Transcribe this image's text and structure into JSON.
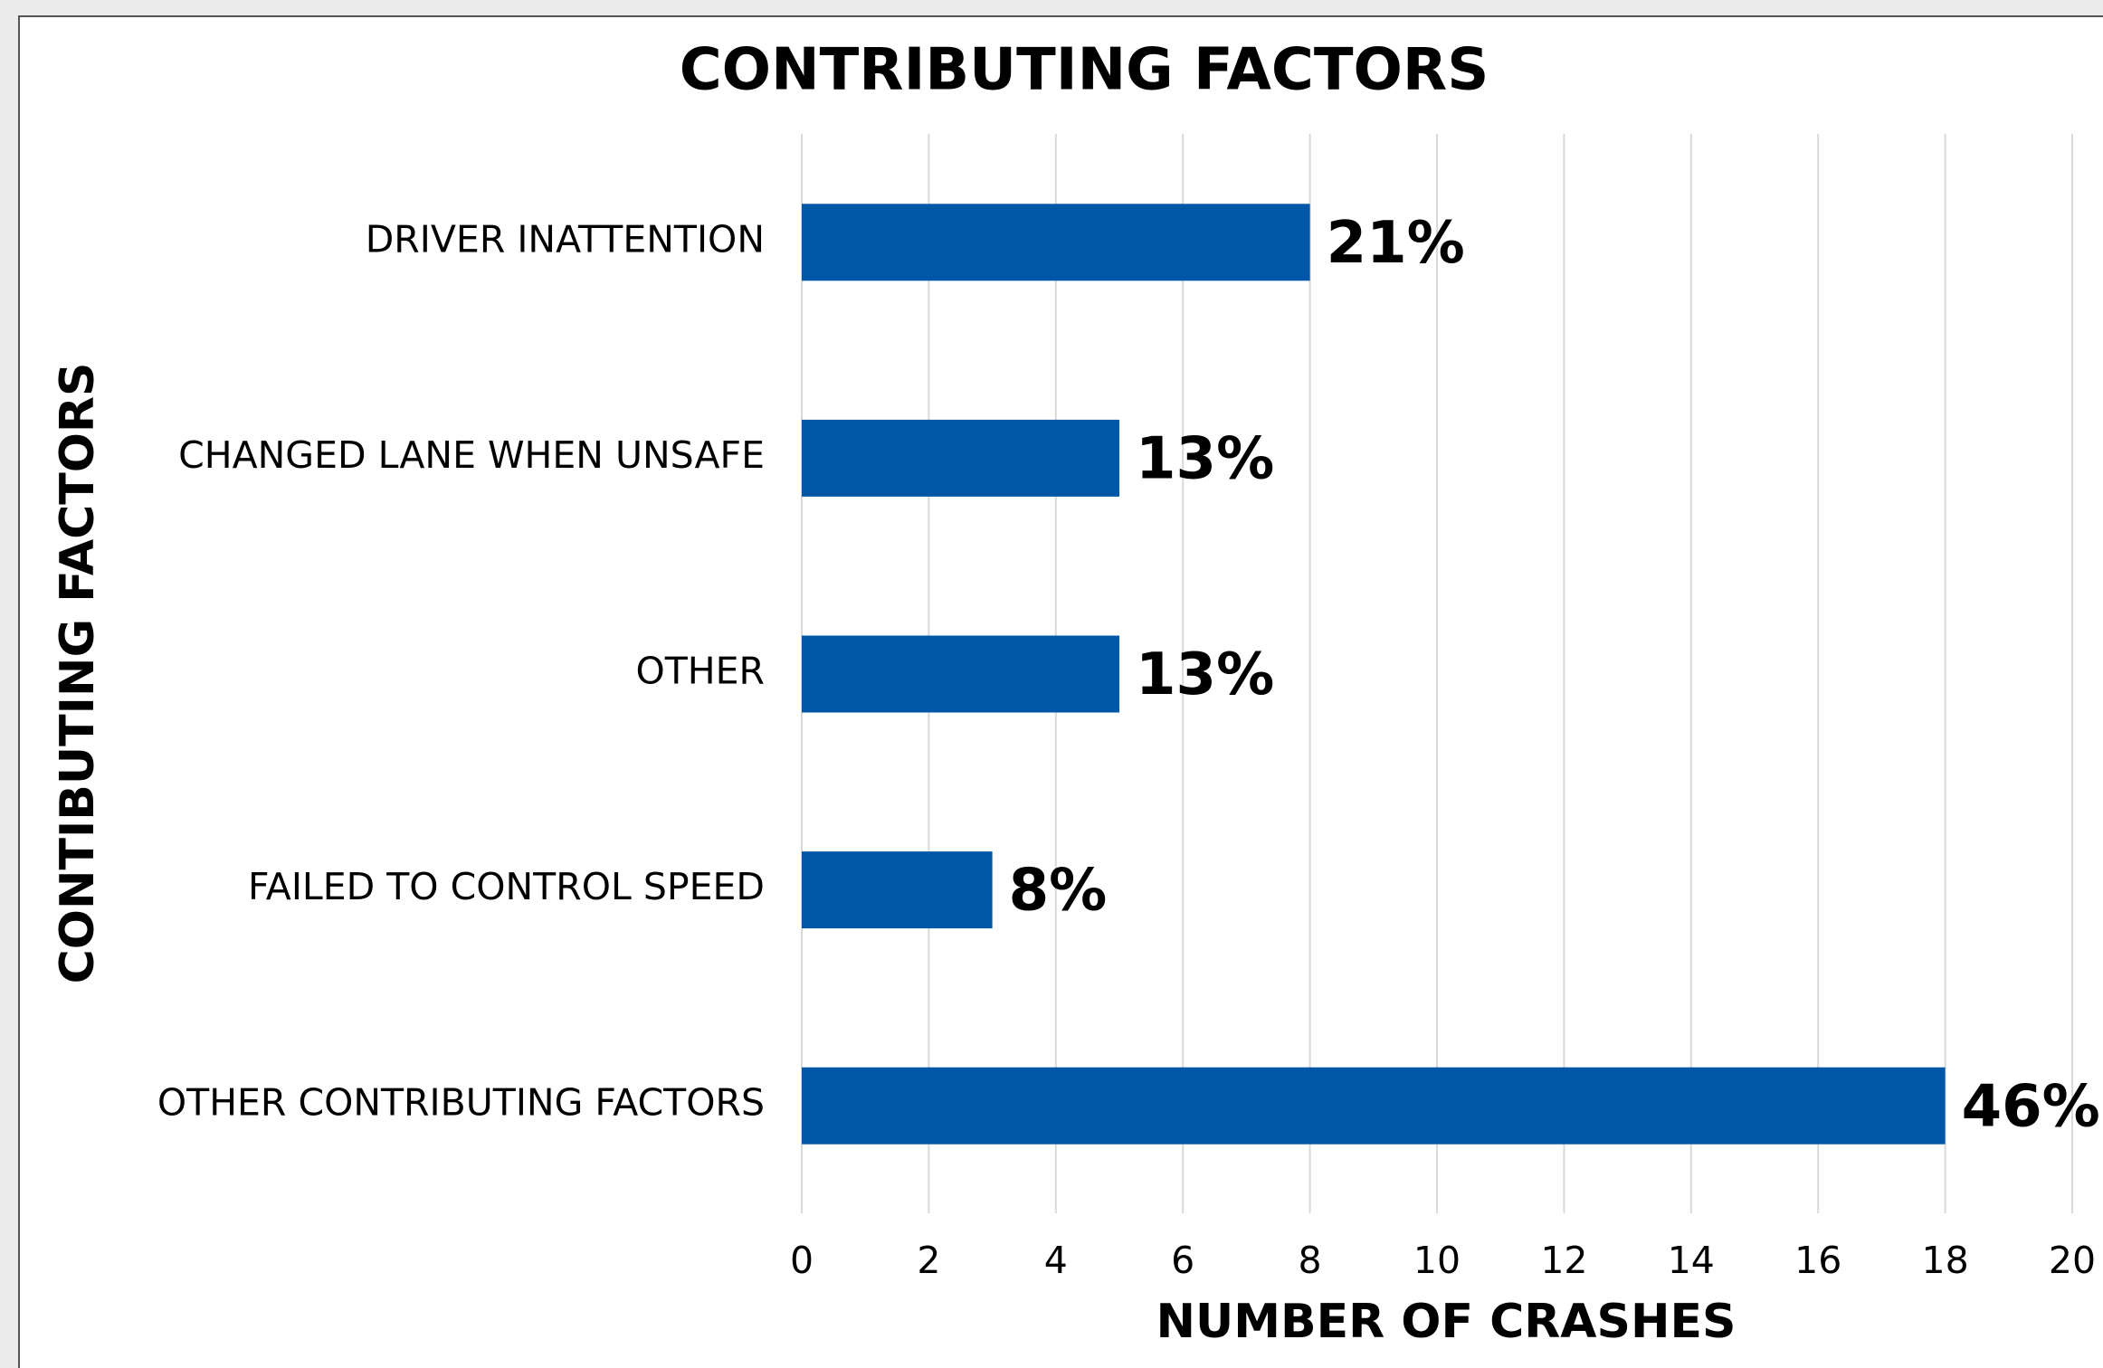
{
  "chart_data": {
    "type": "hbar",
    "title": "CONTRIBUTING FACTORS",
    "x_label": "NUMBER OF CRASHES",
    "y_label": "CONTIBUTING FACTORS",
    "categories": [
      "DRIVER INATTENTION",
      "CHANGED LANE WHEN UNSAFE",
      "OTHER",
      "FAILED TO CONTROL SPEED",
      "OTHER CONTRIBUTING FACTORS"
    ],
    "values": [
      8,
      5,
      5,
      3,
      18
    ],
    "value_labels": [
      "21%",
      "13%",
      "13%",
      "8%",
      "46%"
    ],
    "color": "#0057a8",
    "xlim": [
      0,
      20
    ],
    "xticks": [
      0,
      2,
      4,
      6,
      8,
      10,
      12,
      14,
      16,
      18,
      20
    ],
    "grid": true
  }
}
